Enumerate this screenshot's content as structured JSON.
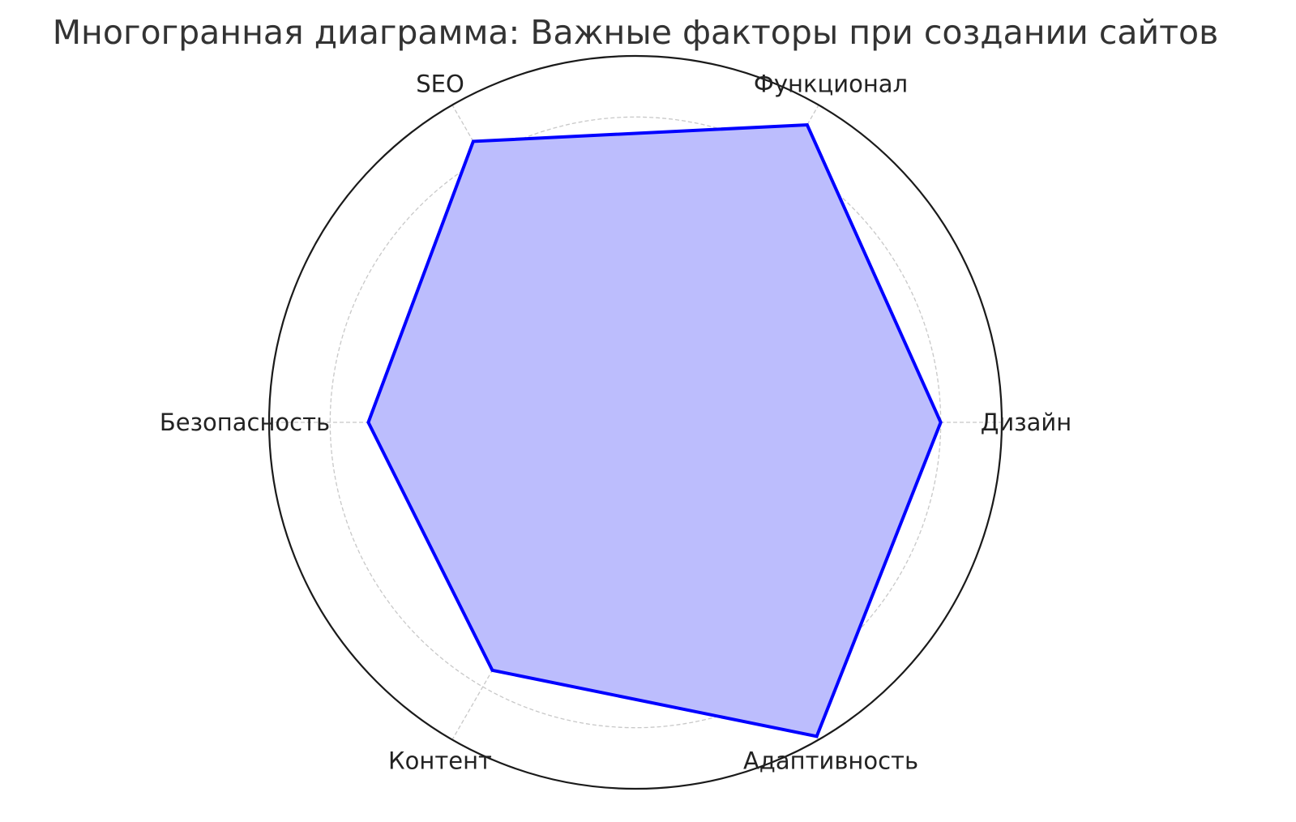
{
  "chart_data": {
    "type": "radar",
    "title": "Многогранная диаграмма: Важные факторы при создании сайтов",
    "categories": [
      "Дизайн",
      "Функционал",
      "SEO",
      "Безопасность",
      "Контент",
      "Адаптивность"
    ],
    "values": [
      8,
      9,
      8.5,
      7,
      7.5,
      9.5
    ],
    "rlim": [
      0,
      9.6
    ],
    "radial_gridlines": [
      2,
      4,
      6,
      8
    ],
    "radial_tick_labels_visible": false,
    "grid": true,
    "grid_style": "dashed",
    "colors": {
      "line": "#0000ff",
      "fill": "#bcbdfd",
      "grid": "#c8c8c8",
      "outer_circle": "#1a1a1a",
      "text": "#222222"
    }
  }
}
